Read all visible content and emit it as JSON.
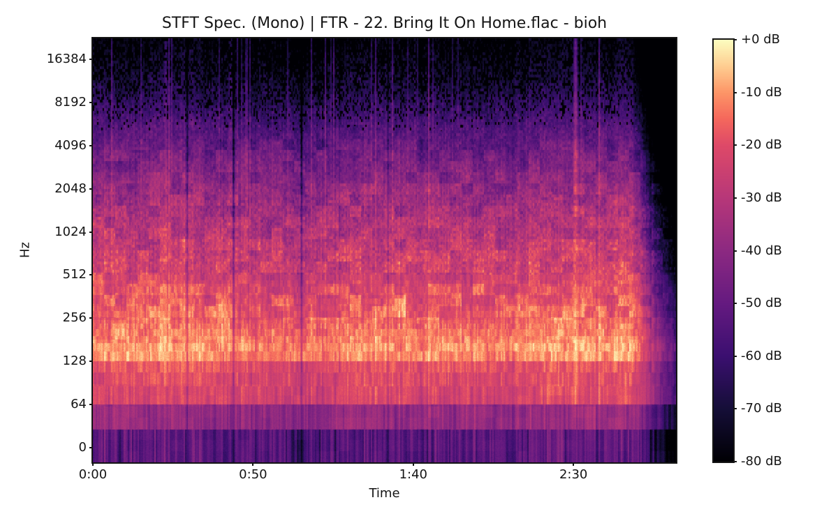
{
  "figure": {
    "background": "#ffffff"
  },
  "chart_data": {
    "type": "heatmap",
    "subtype": "stft-spectrogram",
    "title": "STFT Spec. (Mono) | FTR - 22. Bring It On Home.flac - bioh",
    "xlabel": "Time",
    "ylabel": "Hz",
    "x_ticks": {
      "labels": [
        "0:00",
        "0:50",
        "1:40",
        "2:30"
      ],
      "seconds": [
        0,
        50,
        100,
        150
      ]
    },
    "y_ticks": {
      "labels": [
        "16384",
        "8192",
        "4096",
        "2048",
        "1024",
        "512",
        "256",
        "128",
        "64",
        "0"
      ],
      "hz": [
        16384,
        8192,
        4096,
        2048,
        1024,
        512,
        256,
        128,
        64,
        0
      ]
    },
    "y_scale": "log2",
    "zero_tick_maps_to_hz": 32,
    "duration_seconds": 182,
    "freq_top_hz": 22900,
    "colorbar": {
      "tick_labels": [
        "+0 dB",
        "-10 dB",
        "-20 dB",
        "-30 dB",
        "-40 dB",
        "-50 dB",
        "-60 dB",
        "-70 dB",
        "-80 dB"
      ],
      "db_max": 0,
      "db_min": -80,
      "colormap": "magma",
      "stops": [
        [
          0.0,
          "#000004"
        ],
        [
          0.125,
          "#150e38"
        ],
        [
          0.25,
          "#3b0f70"
        ],
        [
          0.375,
          "#651a80"
        ],
        [
          0.5,
          "#8c2981"
        ],
        [
          0.625,
          "#b73779"
        ],
        [
          0.75,
          "#de4968"
        ],
        [
          0.815,
          "#f5695c"
        ],
        [
          0.875,
          "#fd9567"
        ],
        [
          0.935,
          "#fecb8f"
        ],
        [
          1.0,
          "#fcfdbf"
        ]
      ]
    },
    "spectral_profile_db": [
      [
        21.5,
        -53
      ],
      [
        43,
        -38
      ],
      [
        64.6,
        -22
      ],
      [
        86,
        -21
      ],
      [
        108,
        -19
      ],
      [
        129,
        -11
      ],
      [
        150.7,
        -10
      ],
      [
        172,
        -12
      ],
      [
        194,
        -14
      ],
      [
        215,
        -15
      ],
      [
        237,
        -16
      ],
      [
        258,
        -17
      ],
      [
        290,
        -18
      ],
      [
        323,
        -19
      ],
      [
        355,
        -20
      ],
      [
        388,
        -21
      ],
      [
        430,
        -22
      ],
      [
        475,
        -23
      ],
      [
        517,
        -24
      ],
      [
        700,
        -26
      ],
      [
        1024,
        -30
      ],
      [
        1450,
        -34
      ],
      [
        2048,
        -39
      ],
      [
        2900,
        -44
      ],
      [
        4096,
        -50
      ],
      [
        5800,
        -56
      ],
      [
        8192,
        -63
      ],
      [
        11600,
        -69
      ],
      [
        16384,
        -73
      ],
      [
        24000,
        -78
      ]
    ],
    "fft_bin_hz": 21.53,
    "step_region_max_hz": 517,
    "fade_out": {
      "start_s": 168,
      "end_s": 182.5,
      "low_drop_db": 35,
      "high_extra_db": 60
    },
    "gaps": [
      {
        "s": 29.4,
        "db": 18
      },
      {
        "s": 43.8,
        "db": 24
      },
      {
        "s": 65.0,
        "db": 28
      },
      {
        "s": 92.0,
        "db": 13
      }
    ],
    "accents": [
      {
        "s": 22.7,
        "db": 11
      },
      {
        "s": 43.0,
        "db": 13
      },
      {
        "s": 100.5,
        "db": 8
      },
      {
        "s": 150.5,
        "db": 9
      }
    ],
    "hot_spots": [
      {
        "s": 41,
        "hz": 260,
        "ds": 4,
        "oct": 0.8,
        "db": 9
      },
      {
        "s": 97,
        "hz": 300,
        "ds": 3,
        "oct": 0.7,
        "db": 8
      },
      {
        "s": 8,
        "hz": 230,
        "ds": 3,
        "oct": 0.6,
        "db": 6
      },
      {
        "s": 121,
        "hz": 500,
        "ds": 3,
        "oct": 0.6,
        "db": 6
      }
    ],
    "noise_seed": 1337,
    "style": {
      "text_color": "#151515",
      "spine_color": "#151515"
    }
  }
}
